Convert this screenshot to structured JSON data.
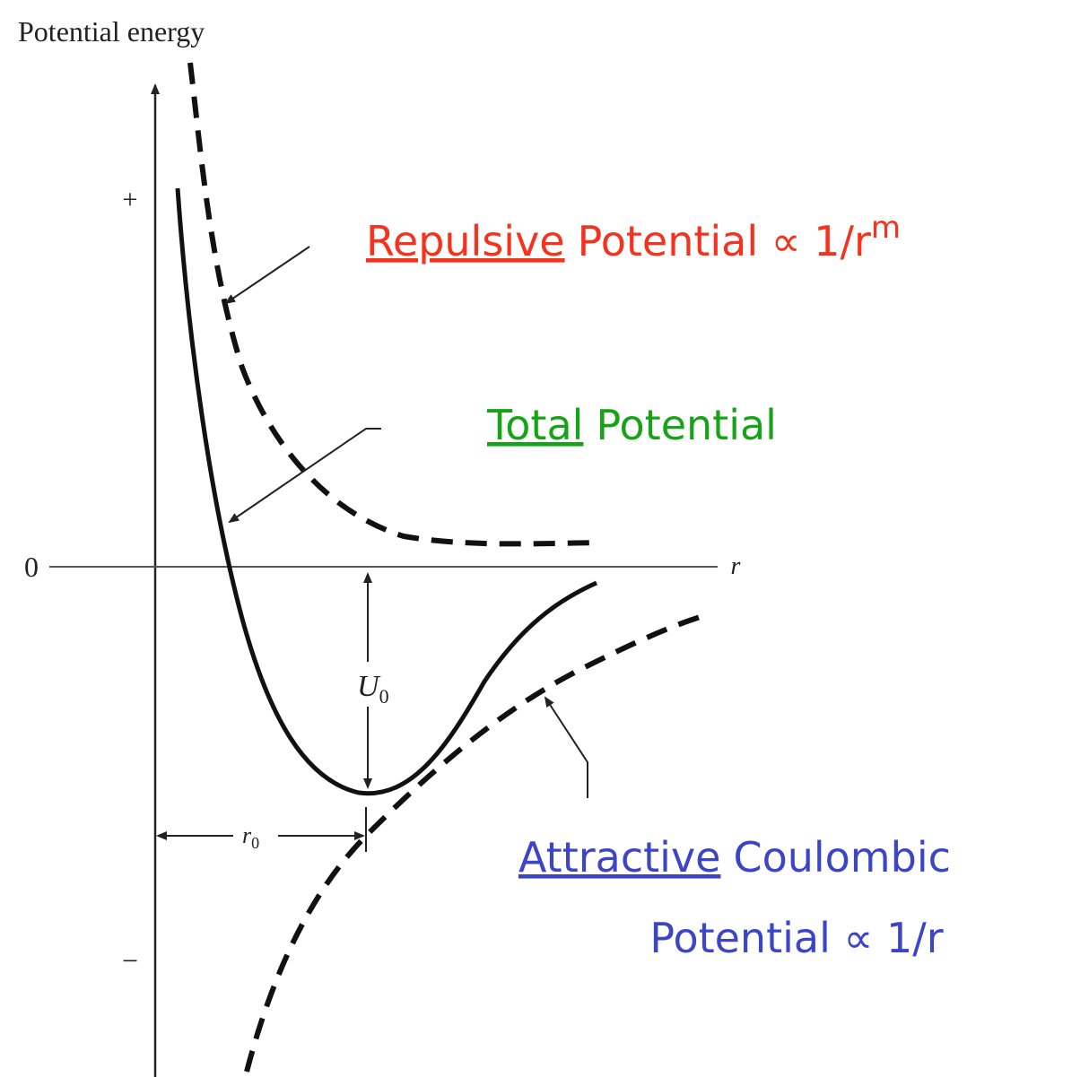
{
  "axes": {
    "y_label": "Potential energy",
    "plus": "+",
    "zero": "0",
    "minus": "−",
    "x_label": "r"
  },
  "annotations": {
    "u0": {
      "base": "U",
      "sub": "0"
    },
    "r0": {
      "base": "r",
      "sub": "0"
    }
  },
  "labels": {
    "repulsive": {
      "emphasis": "Repulsive",
      "text": "Potential ∝ 1/r",
      "superscript": "m"
    },
    "total": {
      "emphasis": "Total",
      "text": "Potential"
    },
    "attractive": {
      "emphasis": "Attractive",
      "line1": "Coulombic",
      "line2": "Potential ∝ 1/r"
    }
  }
}
